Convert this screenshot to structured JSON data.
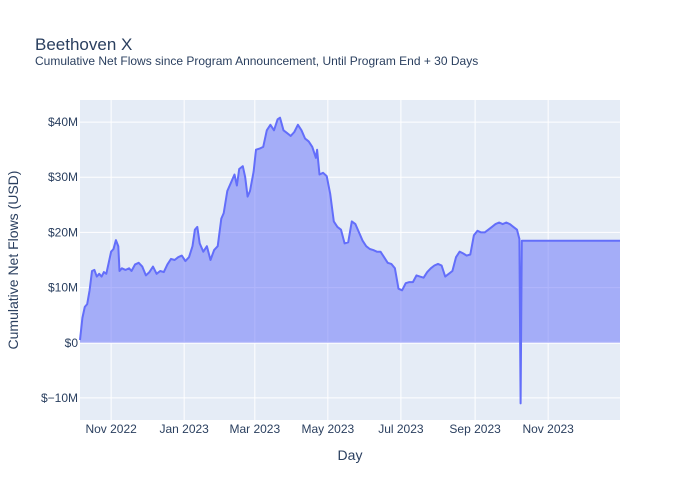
{
  "chart_data": {
    "type": "area",
    "title": "Beethoven X",
    "subtitle": "Cumulative Net Flows since Program Announcement, Until Program End + 30 Days",
    "xlabel": "Day",
    "ylabel": "Cumulative Net Flows (USD)",
    "x_start": "2022-10-06",
    "x_end": "2023-12-31",
    "ylim": [
      -14000000,
      44000000
    ],
    "yticks": [
      {
        "value": -10000000,
        "label": "$−10M"
      },
      {
        "value": 0,
        "label": "$0"
      },
      {
        "value": 10000000,
        "label": "$10M"
      },
      {
        "value": 20000000,
        "label": "$20M"
      },
      {
        "value": 30000000,
        "label": "$30M"
      },
      {
        "value": 40000000,
        "label": "$40M"
      }
    ],
    "xticks": [
      {
        "date": "2022-11-01",
        "label": "Nov 2022"
      },
      {
        "date": "2023-01-01",
        "label": "Jan 2023"
      },
      {
        "date": "2023-03-01",
        "label": "Mar 2023"
      },
      {
        "date": "2023-05-01",
        "label": "May 2023"
      },
      {
        "date": "2023-07-01",
        "label": "Jul 2023"
      },
      {
        "date": "2023-09-01",
        "label": "Sep 2023"
      },
      {
        "date": "2023-11-01",
        "label": "Nov 2023"
      }
    ],
    "series": [
      {
        "name": "Cumulative Net Flows",
        "color": "#636efa",
        "points": [
          [
            "2022-10-06",
            0.5
          ],
          [
            "2022-10-08",
            4.5
          ],
          [
            "2022-10-10",
            6.5
          ],
          [
            "2022-10-12",
            7.0
          ],
          [
            "2022-10-14",
            9.5
          ],
          [
            "2022-10-16",
            13.0
          ],
          [
            "2022-10-18",
            13.2
          ],
          [
            "2022-10-20",
            12.0
          ],
          [
            "2022-10-22",
            12.5
          ],
          [
            "2022-10-24",
            12.0
          ],
          [
            "2022-10-26",
            12.8
          ],
          [
            "2022-10-28",
            12.5
          ],
          [
            "2022-10-30",
            14.5
          ],
          [
            "2022-11-01",
            16.5
          ],
          [
            "2022-11-03",
            17.0
          ],
          [
            "2022-11-05",
            18.6
          ],
          [
            "2022-11-07",
            17.5
          ],
          [
            "2022-11-08",
            13.0
          ],
          [
            "2022-11-10",
            13.5
          ],
          [
            "2022-11-13",
            13.2
          ],
          [
            "2022-11-16",
            13.5
          ],
          [
            "2022-11-18",
            13.0
          ],
          [
            "2022-11-21",
            14.2
          ],
          [
            "2022-11-24",
            14.5
          ],
          [
            "2022-11-27",
            13.8
          ],
          [
            "2022-11-30",
            12.2
          ],
          [
            "2022-12-03",
            12.8
          ],
          [
            "2022-12-06",
            13.8
          ],
          [
            "2022-12-09",
            12.5
          ],
          [
            "2022-12-12",
            13.0
          ],
          [
            "2022-12-15",
            12.8
          ],
          [
            "2022-12-18",
            14.2
          ],
          [
            "2022-12-21",
            15.2
          ],
          [
            "2022-12-24",
            15.0
          ],
          [
            "2022-12-27",
            15.5
          ],
          [
            "2022-12-30",
            15.8
          ],
          [
            "2023-01-02",
            14.8
          ],
          [
            "2023-01-05",
            15.5
          ],
          [
            "2023-01-08",
            17.5
          ],
          [
            "2023-01-10",
            20.5
          ],
          [
            "2023-01-12",
            21.0
          ],
          [
            "2023-01-14",
            18.0
          ],
          [
            "2023-01-17",
            16.5
          ],
          [
            "2023-01-20",
            17.5
          ],
          [
            "2023-01-23",
            15.0
          ],
          [
            "2023-01-26",
            16.8
          ],
          [
            "2023-01-29",
            17.5
          ],
          [
            "2023-02-01",
            22.5
          ],
          [
            "2023-02-03",
            23.5
          ],
          [
            "2023-02-06",
            27.5
          ],
          [
            "2023-02-09",
            29.0
          ],
          [
            "2023-02-12",
            30.5
          ],
          [
            "2023-02-14",
            28.5
          ],
          [
            "2023-02-16",
            31.5
          ],
          [
            "2023-02-19",
            32.0
          ],
          [
            "2023-02-21",
            30.0
          ],
          [
            "2023-02-23",
            26.5
          ],
          [
            "2023-02-25",
            27.5
          ],
          [
            "2023-02-28",
            31.0
          ],
          [
            "2023-03-02",
            35.0
          ],
          [
            "2023-03-05",
            35.2
          ],
          [
            "2023-03-08",
            35.5
          ],
          [
            "2023-03-11",
            38.5
          ],
          [
            "2023-03-14",
            39.5
          ],
          [
            "2023-03-17",
            38.5
          ],
          [
            "2023-03-20",
            40.5
          ],
          [
            "2023-03-22",
            40.8
          ],
          [
            "2023-03-25",
            38.5
          ],
          [
            "2023-03-28",
            38.0
          ],
          [
            "2023-03-31",
            37.5
          ],
          [
            "2023-04-03",
            38.2
          ],
          [
            "2023-04-06",
            39.5
          ],
          [
            "2023-04-09",
            38.5
          ],
          [
            "2023-04-12",
            37.0
          ],
          [
            "2023-04-15",
            36.5
          ],
          [
            "2023-04-18",
            35.5
          ],
          [
            "2023-04-21",
            33.5
          ],
          [
            "2023-04-22",
            35.0
          ],
          [
            "2023-04-24",
            30.5
          ],
          [
            "2023-04-27",
            30.8
          ],
          [
            "2023-04-30",
            30.2
          ],
          [
            "2023-05-03",
            27.0
          ],
          [
            "2023-05-06",
            22.0
          ],
          [
            "2023-05-09",
            21.0
          ],
          [
            "2023-05-12",
            20.5
          ],
          [
            "2023-05-15",
            18.0
          ],
          [
            "2023-05-18",
            18.2
          ],
          [
            "2023-05-21",
            22.0
          ],
          [
            "2023-05-24",
            21.5
          ],
          [
            "2023-05-27",
            20.0
          ],
          [
            "2023-05-30",
            18.5
          ],
          [
            "2023-06-02",
            17.5
          ],
          [
            "2023-06-05",
            17.0
          ],
          [
            "2023-06-08",
            16.8
          ],
          [
            "2023-06-11",
            16.5
          ],
          [
            "2023-06-14",
            16.5
          ],
          [
            "2023-06-17",
            15.5
          ],
          [
            "2023-06-20",
            14.5
          ],
          [
            "2023-06-23",
            14.3
          ],
          [
            "2023-06-26",
            13.5
          ],
          [
            "2023-06-29",
            9.8
          ],
          [
            "2023-07-02",
            9.5
          ],
          [
            "2023-07-05",
            10.8
          ],
          [
            "2023-07-08",
            11.0
          ],
          [
            "2023-07-11",
            11.0
          ],
          [
            "2023-07-14",
            12.2
          ],
          [
            "2023-07-17",
            12.0
          ],
          [
            "2023-07-20",
            11.8
          ],
          [
            "2023-07-23",
            12.8
          ],
          [
            "2023-07-26",
            13.5
          ],
          [
            "2023-07-29",
            14.0
          ],
          [
            "2023-08-01",
            14.3
          ],
          [
            "2023-08-04",
            14.0
          ],
          [
            "2023-08-07",
            12.0
          ],
          [
            "2023-08-10",
            12.5
          ],
          [
            "2023-08-13",
            13.0
          ],
          [
            "2023-08-16",
            15.5
          ],
          [
            "2023-08-19",
            16.5
          ],
          [
            "2023-08-22",
            16.2
          ],
          [
            "2023-08-25",
            15.8
          ],
          [
            "2023-08-28",
            16.0
          ],
          [
            "2023-08-31",
            19.5
          ],
          [
            "2023-09-03",
            20.3
          ],
          [
            "2023-09-06",
            20.0
          ],
          [
            "2023-09-09",
            20.0
          ],
          [
            "2023-09-12",
            20.5
          ],
          [
            "2023-09-15",
            21.0
          ],
          [
            "2023-09-18",
            21.5
          ],
          [
            "2023-09-21",
            21.8
          ],
          [
            "2023-09-24",
            21.5
          ],
          [
            "2023-09-27",
            21.8
          ],
          [
            "2023-09-30",
            21.5
          ],
          [
            "2023-10-03",
            21.0
          ],
          [
            "2023-10-06",
            20.5
          ],
          [
            "2023-10-08",
            18.8
          ],
          [
            "2023-10-09",
            -11.0
          ],
          [
            "2023-10-10",
            18.5
          ],
          [
            "2023-12-31",
            18.5
          ]
        ]
      }
    ]
  }
}
